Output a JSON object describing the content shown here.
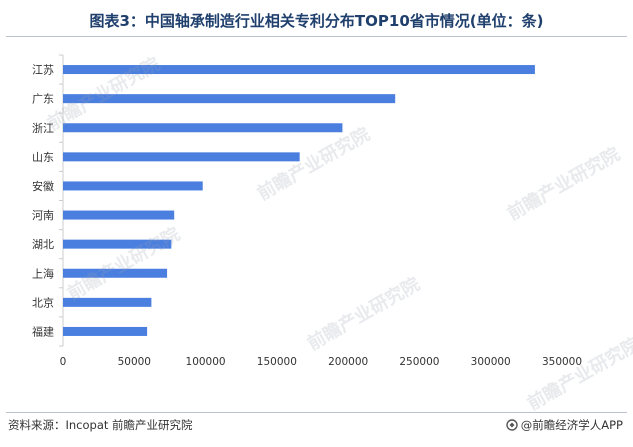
{
  "title": "图表3：中国轴承制造行业相关专利分布TOP10省市情况(单位：条)",
  "source": "资料来源：Incopat 前瞻产业研究院",
  "brand": "@前瞻经济学人APP",
  "watermark": "前瞻产业研究院",
  "colors": {
    "bar": "#4a7fe0",
    "title": "#1f3f6d",
    "axis": "#cccccc"
  },
  "chart_data": {
    "type": "bar",
    "orientation": "horizontal",
    "categories": [
      "江苏",
      "广东",
      "浙江",
      "山东",
      "安徽",
      "河南",
      "湖北",
      "上海",
      "北京",
      "福建"
    ],
    "values": [
      331000,
      233000,
      196000,
      166000,
      98000,
      78000,
      76000,
      73000,
      62000,
      59000
    ],
    "xlim": [
      0,
      350000
    ],
    "xticks": [
      "0",
      "50000",
      "100000",
      "150000",
      "200000",
      "250000",
      "300000",
      "350000"
    ],
    "grid": false,
    "legend": false,
    "xlabel": "",
    "ylabel": ""
  }
}
